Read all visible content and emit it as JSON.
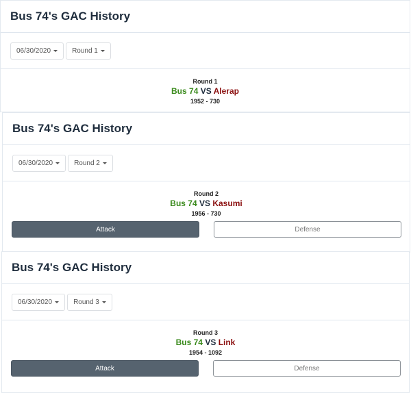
{
  "panels": [
    {
      "title": "Bus 74's GAC History",
      "date": "06/30/2020",
      "round_select": "Round 1",
      "round": "Round 1",
      "player": "Bus 74",
      "vs": "VS",
      "opponent": "Alerap",
      "score": "1952 - 730"
    },
    {
      "title": "Bus 74's GAC History",
      "date": "06/30/2020",
      "round_select": "Round 2",
      "round": "Round 2",
      "player": "Bus 74",
      "vs": "VS",
      "opponent": "Kasumi",
      "score": "1956 - 730",
      "attack": "Attack",
      "defense": "Defense"
    },
    {
      "title": "Bus 74's GAC History",
      "date": "06/30/2020",
      "round_select": "Round 3",
      "round": "Round 3",
      "player": "Bus 74",
      "vs": "VS",
      "opponent": "Link",
      "score": "1954 - 1092",
      "attack": "Attack",
      "defense": "Defense"
    }
  ],
  "colors": {
    "player": "#3a8a1c",
    "opponent": "#8b0f0f",
    "attack_button": "#56636f"
  }
}
